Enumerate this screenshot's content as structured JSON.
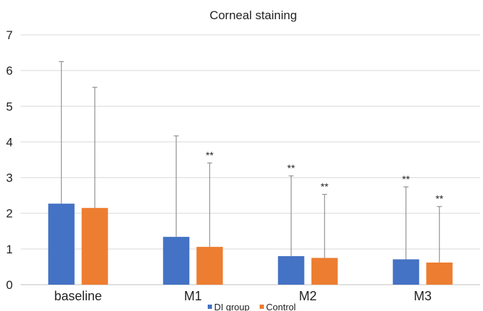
{
  "chart_data": {
    "type": "bar",
    "title": "Corneal staining",
    "xlabel": "",
    "ylabel": "",
    "ylim": [
      0,
      7
    ],
    "yticks": [
      0,
      1,
      2,
      3,
      4,
      5,
      6,
      7
    ],
    "grid": true,
    "legend_position": "bottom",
    "categories": [
      "baseline",
      "M1",
      "M2",
      "M3"
    ],
    "series": [
      {
        "name": "DI group",
        "color": "#4472C4",
        "values": [
          2.27,
          1.34,
          0.8,
          0.71
        ],
        "error_upper": [
          6.25,
          4.17,
          3.05,
          2.74
        ],
        "annotations": [
          "",
          "",
          "**",
          "**"
        ]
      },
      {
        "name": "Control",
        "color": "#ED7D31",
        "values": [
          2.15,
          1.06,
          0.75,
          0.62
        ],
        "error_upper": [
          5.53,
          3.41,
          2.53,
          2.19
        ],
        "annotations": [
          "",
          "**",
          "**",
          "**"
        ]
      }
    ]
  }
}
